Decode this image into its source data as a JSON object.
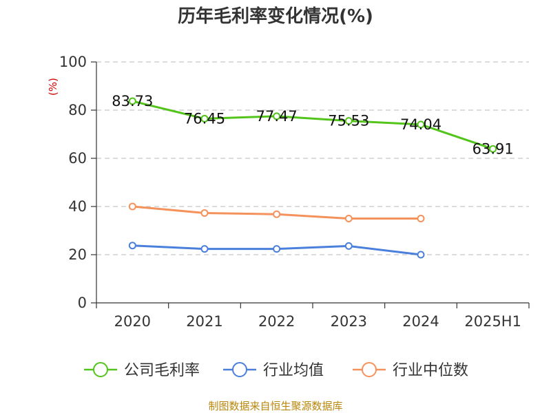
{
  "chart_data": {
    "type": "line",
    "title": "历年毛利率变化情况(%)",
    "ylabel": "(%)",
    "xlabel": "",
    "categories": [
      "2020",
      "2021",
      "2022",
      "2023",
      "2024",
      "2025H1"
    ],
    "ylim": [
      0,
      100
    ],
    "yticks": [
      0,
      20,
      40,
      60,
      80,
      100
    ],
    "grid": true,
    "legend_position": "bottom",
    "series": [
      {
        "name": "公司毛利率",
        "color": "#52c41a",
        "values": [
          83.73,
          76.45,
          77.47,
          75.53,
          74.04,
          63.91
        ],
        "labels": [
          "83.73",
          "76.45",
          "77.47",
          "75.53",
          "74.04",
          "63.91"
        ]
      },
      {
        "name": "行业均值",
        "color": "#4a7fdc",
        "values": [
          23.8,
          22.4,
          22.4,
          23.6,
          20.0,
          null
        ]
      },
      {
        "name": "行业中位数",
        "color": "#f5915a",
        "values": [
          40.0,
          37.3,
          36.8,
          35.0,
          35.0,
          null
        ]
      }
    ]
  },
  "footer": {
    "source": "制图数据来自恒生聚源数据库"
  }
}
